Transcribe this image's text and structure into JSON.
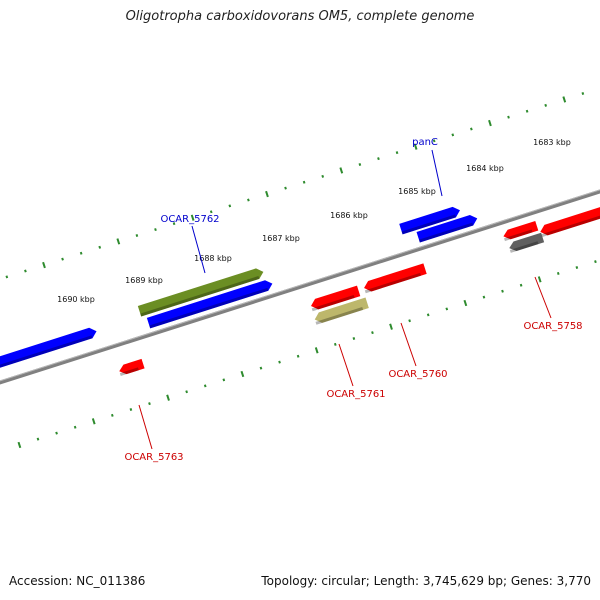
{
  "title": "Oligotropha carboxidovorans OM5, complete genome",
  "footer": {
    "accession": "Accession: NC_011386",
    "topology": "Topology: circular; Length: 3,745,629 bp; Genes: 3,770"
  },
  "colors": {
    "backbone": "#808080",
    "tick": "#2e8b2e",
    "forward_gene": "#0000ff",
    "reverse_gene": "#ff0000",
    "green_gene": "#6b8e23",
    "khaki_gene": "#bdb76b",
    "gray_gene": "#606060",
    "forward_label": "#0000cc",
    "reverse_label": "#cc0000"
  },
  "ticks": {
    "major": [
      "1683 kbp",
      "1684 kbp",
      "1685 kbp",
      "1686 kbp",
      "1687 kbp",
      "1688 kbp",
      "1689 kbp",
      "1690 kbp"
    ]
  },
  "genes": {
    "forward": [
      {
        "color": "blue"
      },
      {
        "color": "blue"
      },
      {
        "color": "blue"
      },
      {
        "color": "green"
      },
      {
        "color": "blue"
      }
    ],
    "reverse": [
      {
        "color": "red"
      },
      {
        "color": "gray"
      },
      {
        "color": "red"
      },
      {
        "color": "red"
      },
      {
        "color": "red"
      },
      {
        "color": "khaki"
      },
      {
        "color": "red"
      }
    ]
  },
  "labels": {
    "forward": [
      "panC",
      "OCAR_5762"
    ],
    "reverse": [
      "OCAR_5758",
      "OCAR_5760",
      "OCAR_5761",
      "OCAR_5763"
    ]
  }
}
